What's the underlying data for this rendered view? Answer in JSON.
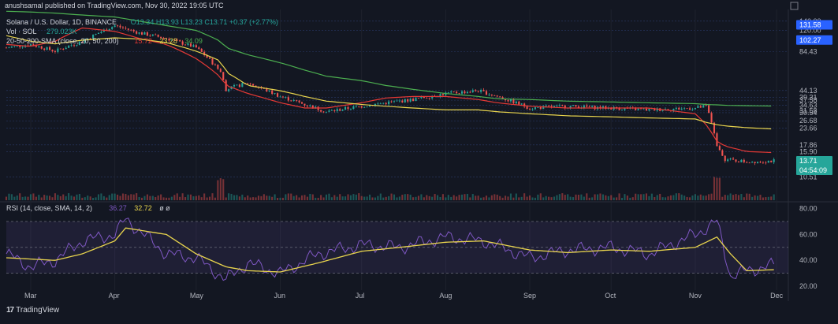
{
  "header": {
    "published_by": "anushsamal published on TradingView.com, Nov 30, 2022 19:05 UTC"
  },
  "legend": {
    "symbol": "Solana / U.S. Dollar, 1D, BINANCE",
    "ohlc": "O13.34  H13.93  L13.23  C13.71  +0.37 (+2.77%)",
    "vol_label": "Vol · SOL",
    "vol_value": "279.023K",
    "sma_label": "20-50-200-SMA (close, 20, 50, 200)",
    "sma_values": [
      "15.72",
      "23.28",
      "34.09"
    ],
    "rsi_label": "RSI (14, close, SMA, 14, 2)",
    "rsi_values": [
      "36.27",
      "32.72"
    ],
    "rsi_extra": "ø  ø"
  },
  "footer": {
    "logo_text": "TradingView"
  },
  "colors": {
    "background": "#131722",
    "up": "#26a69a",
    "down": "#ef5350",
    "sma20": "#e53935",
    "sma50": "#e8d44d",
    "sma200": "#4caf50",
    "rsi": "#7e57c2",
    "rsi_ma": "#e8d44d",
    "price_label": "#2962ff",
    "last_price_label": "#26a69a"
  },
  "chart_data": [
    {
      "type": "candlestick",
      "title": "Solana / U.S. Dollar, 1D, BINANCE",
      "x_ticks": [
        "Mar",
        "Apr",
        "May",
        "Jun",
        "Jul",
        "Aug",
        "Sep",
        "Oct",
        "Nov",
        "Dec"
      ],
      "y_unit": "USD",
      "y_scale": "log",
      "y_ticks": [
        140.0,
        120.0,
        84.43,
        44.13,
        39.31,
        37.58,
        34.63,
        31.58,
        30.54,
        26.68,
        23.66,
        17.86,
        15.9,
        10.51
      ],
      "price_labels": [
        {
          "label": "131.58"
        },
        {
          "label": "102.27"
        },
        {
          "label": "13.71",
          "sub": "04:54:09"
        }
      ],
      "price_series": {
        "x": [
          "Feb 20",
          "Mar 1",
          "Mar 10",
          "Mar 20",
          "Apr 1",
          "Apr 10",
          "Apr 20",
          "May 1",
          "May 10",
          "May 12",
          "May 20",
          "Jun 1",
          "Jun 10",
          "Jun 18",
          "Jul 1",
          "Jul 10",
          "Jul 20",
          "Aug 1",
          "Aug 13",
          "Aug 20",
          "Sep 1",
          "Sep 15",
          "Oct 1",
          "Oct 15",
          "Nov 1",
          "Nov 5",
          "Nov 9",
          "Nov 12",
          "Nov 20",
          "Nov 30"
        ],
        "close": [
          90,
          95,
          85,
          100,
          130,
          115,
          105,
          90,
          60,
          45,
          50,
          40,
          35,
          31,
          34,
          36,
          38,
          42,
          44,
          40,
          33,
          34,
          33,
          32,
          33,
          34,
          18,
          14,
          13.5,
          13.71
        ]
      },
      "series": [
        {
          "name": "SMA 20",
          "values": [
            95,
            92,
            100,
            125,
            118,
            105,
            95,
            75,
            55,
            48,
            42,
            36,
            33,
            33,
            36,
            39,
            40,
            40,
            38,
            36,
            34,
            33,
            33,
            33,
            30,
            25,
            19,
            17.5,
            16,
            15.72
          ]
        },
        {
          "name": "SMA 50",
          "values": [
            110,
            100,
            96,
            102,
            106,
            104,
            98,
            85,
            72,
            60,
            48,
            44,
            40,
            37,
            35,
            34,
            33,
            32,
            32,
            31,
            30,
            29,
            28.5,
            28,
            27.5,
            26,
            25,
            24.5,
            23.8,
            23.28
          ]
        },
        {
          "name": "SMA 200",
          "values": [
            165,
            163,
            160,
            155,
            150,
            140,
            130,
            120,
            100,
            90,
            80,
            70,
            62,
            56,
            52,
            48,
            45,
            42,
            40,
            38.5,
            38,
            37,
            36.5,
            36,
            35.5,
            35,
            34.8,
            34.5,
            34.3,
            34.09
          ]
        }
      ],
      "volume_spikes": [
        {
          "x": "May 10",
          "volume": "high"
        },
        {
          "x": "Nov 9",
          "volume": "high"
        }
      ]
    },
    {
      "type": "line",
      "title": "RSI (14, close, SMA, 14, 2)",
      "x_ticks": [
        "Mar",
        "Apr",
        "May",
        "Jun",
        "Jul",
        "Aug",
        "Sep",
        "Oct",
        "Nov",
        "Dec"
      ],
      "ylim": [
        17,
        84
      ],
      "y_ticks": [
        80.0,
        60.0,
        40.0,
        20.0
      ],
      "band": [
        30,
        70
      ],
      "series": [
        {
          "name": "RSI",
          "x": [
            "Feb 20",
            "Mar 1",
            "Mar 10",
            "Mar 20",
            "Apr 1",
            "Apr 5",
            "Apr 20",
            "May 1",
            "May 12",
            "May 20",
            "Jun 1",
            "Jun 15",
            "Jul 1",
            "Jul 15",
            "Aug 1",
            "Aug 15",
            "Sep 1",
            "Sep 15",
            "Oct 1",
            "Oct 15",
            "Nov 1",
            "Nov 9",
            "Nov 14",
            "Nov 20",
            "Nov 30"
          ],
          "values": [
            45,
            35,
            40,
            55,
            60,
            72,
            45,
            42,
            25,
            38,
            30,
            45,
            52,
            50,
            58,
            55,
            42,
            48,
            50,
            45,
            60,
            70,
            28,
            32,
            36.27
          ]
        },
        {
          "name": "RSI-based MA",
          "x": [
            "Feb 20",
            "Mar 1",
            "Mar 10",
            "Mar 20",
            "Apr 1",
            "Apr 5",
            "Apr 20",
            "May 1",
            "May 12",
            "May 20",
            "Jun 1",
            "Jun 15",
            "Jul 1",
            "Jul 15",
            "Aug 1",
            "Aug 15",
            "Sep 1",
            "Sep 15",
            "Oct 1",
            "Oct 15",
            "Nov 1",
            "Nov 9",
            "Nov 14",
            "Nov 20",
            "Nov 30"
          ],
          "values": [
            42,
            41,
            40,
            45,
            55,
            65,
            60,
            45,
            35,
            32,
            31,
            38,
            47,
            50,
            54,
            55,
            48,
            46,
            48,
            47,
            50,
            58,
            45,
            32,
            32.72
          ]
        }
      ]
    }
  ]
}
